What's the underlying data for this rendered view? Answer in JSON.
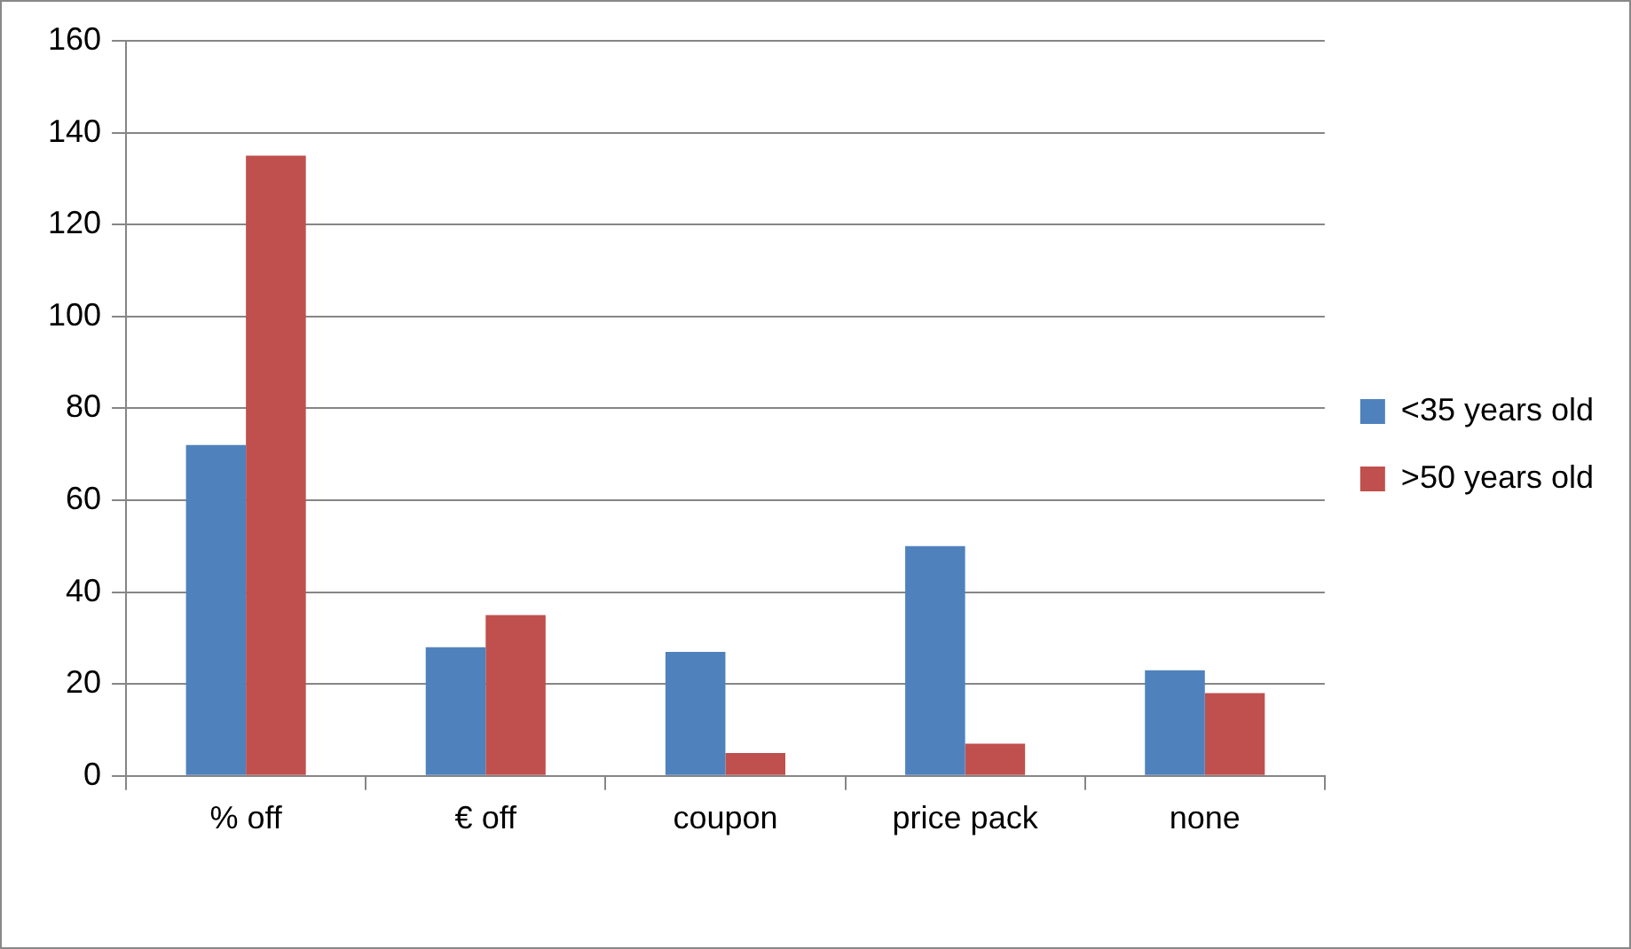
{
  "chart_data": {
    "type": "bar",
    "categories": [
      "% off",
      "€ off",
      "coupon",
      "price pack",
      "none"
    ],
    "series": [
      {
        "name": "<35 years old",
        "color": "#4f81bd",
        "values": [
          72,
          28,
          27,
          50,
          23
        ]
      },
      {
        "name": ">50 years old",
        "color": "#c0504d",
        "values": [
          135,
          35,
          5,
          7,
          18
        ]
      }
    ],
    "ylim": [
      0,
      160
    ],
    "yticks": [
      0,
      20,
      40,
      60,
      80,
      100,
      120,
      140,
      160
    ],
    "grid": "y",
    "legend": "right"
  }
}
